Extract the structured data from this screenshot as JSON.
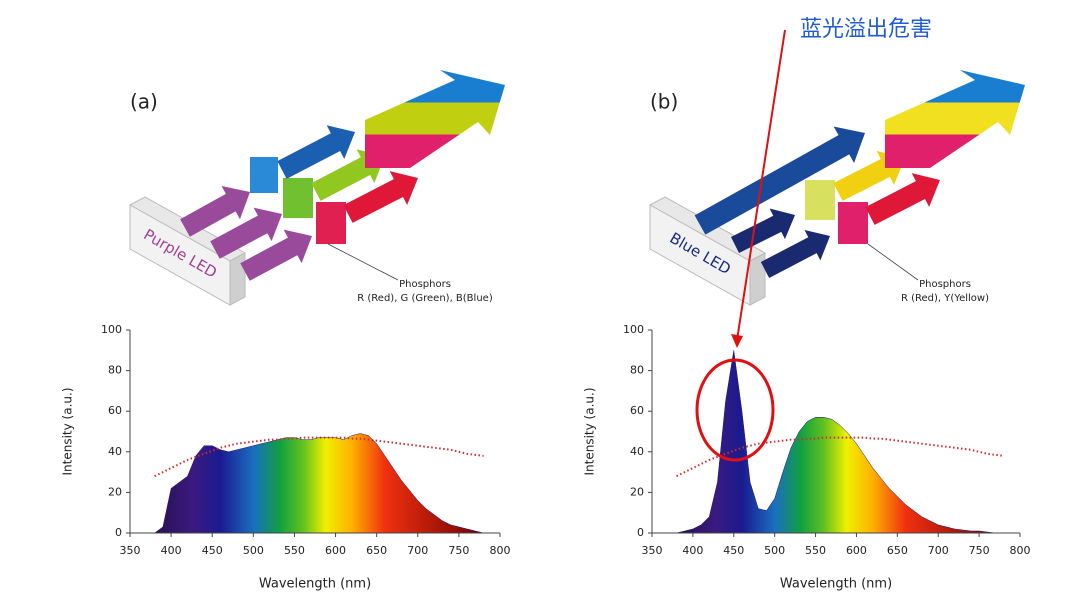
{
  "annotation": "蓝光溢出危害",
  "chart_data": [
    {
      "type": "area",
      "panel": "(a)",
      "source": "Purple LED",
      "phosphors_title": "Phosphors",
      "phosphors": "R (Red), G (Green), B(Blue)",
      "x_label": "Wavelength (nm)",
      "y_label": "Intensity (a.u.)",
      "xlim": [
        350,
        800
      ],
      "xticks": [
        350,
        400,
        450,
        500,
        550,
        600,
        650,
        700,
        750,
        800
      ],
      "ylim": [
        0,
        100
      ],
      "yticks": [
        0,
        20,
        40,
        60,
        80,
        100
      ],
      "x": [
        380,
        390,
        400,
        410,
        420,
        430,
        440,
        450,
        460,
        470,
        480,
        490,
        500,
        510,
        520,
        530,
        540,
        550,
        560,
        570,
        580,
        590,
        600,
        610,
        620,
        630,
        640,
        650,
        660,
        670,
        680,
        690,
        700,
        710,
        720,
        730,
        740,
        750,
        760,
        770,
        780
      ],
      "series": [
        {
          "color": "#2a1a6a",
          "style": "filled",
          "values": [
            0,
            3,
            22,
            25,
            28,
            38,
            43,
            43,
            41,
            40,
            41,
            42,
            43,
            44,
            45,
            46,
            47,
            47,
            46,
            46,
            47,
            47,
            47,
            46,
            48,
            49,
            48,
            44,
            38,
            32,
            26,
            21,
            16,
            12,
            9,
            6,
            4,
            3,
            2,
            1,
            0
          ]
        },
        {
          "color": "#d42a2a",
          "style": "dotted",
          "values": [
            28,
            30,
            32,
            34,
            36,
            37.5,
            39,
            40.5,
            42,
            43,
            44,
            44.5,
            45,
            45.5,
            46,
            46,
            46.5,
            46.5,
            47,
            47,
            47,
            47,
            47,
            47,
            46.5,
            46.5,
            46,
            45.5,
            45,
            44.5,
            44,
            43.5,
            43,
            42.5,
            42,
            41.5,
            41,
            40,
            39,
            38.5,
            38
          ]
        }
      ]
    },
    {
      "type": "area",
      "panel": "(b)",
      "source": "Blue LED",
      "phosphors_title": "Phosphors",
      "phosphors": "R (Red), Y(Yellow)",
      "x_label": "Wavelength (nm)",
      "y_label": "Intensity (a.u.)",
      "xlim": [
        350,
        800
      ],
      "xticks": [
        350,
        400,
        450,
        500,
        550,
        600,
        650,
        700,
        750,
        800
      ],
      "ylim": [
        0,
        100
      ],
      "yticks": [
        0,
        20,
        40,
        60,
        80,
        100
      ],
      "x": [
        380,
        390,
        400,
        410,
        420,
        430,
        440,
        450,
        460,
        470,
        480,
        490,
        500,
        510,
        520,
        530,
        540,
        550,
        560,
        570,
        580,
        590,
        600,
        610,
        620,
        630,
        640,
        650,
        660,
        670,
        680,
        690,
        700,
        710,
        720,
        730,
        740,
        750,
        760,
        770,
        780
      ],
      "series": [
        {
          "color": "#1a1a6e",
          "style": "filled",
          "values": [
            0,
            1,
            2,
            4,
            8,
            25,
            65,
            90,
            60,
            25,
            12,
            11,
            17,
            30,
            42,
            50,
            55,
            57,
            57,
            56,
            53,
            49,
            44,
            38,
            32,
            27,
            22,
            18,
            14,
            11,
            8,
            6,
            4,
            3,
            2,
            1.5,
            1,
            1,
            0.5,
            0,
            0
          ]
        },
        {
          "color": "#d42a2a",
          "style": "dotted",
          "values": [
            28,
            30,
            32,
            34,
            36,
            37.5,
            39,
            40.5,
            42,
            43,
            44,
            44.5,
            45,
            45.5,
            46,
            46,
            46.5,
            46.5,
            47,
            47,
            47,
            47,
            47,
            47,
            46.5,
            46.5,
            46,
            45.5,
            45,
            44.5,
            44,
            43.5,
            43,
            42.5,
            42,
            41.5,
            41,
            40,
            39,
            38.5,
            38
          ]
        }
      ]
    }
  ]
}
